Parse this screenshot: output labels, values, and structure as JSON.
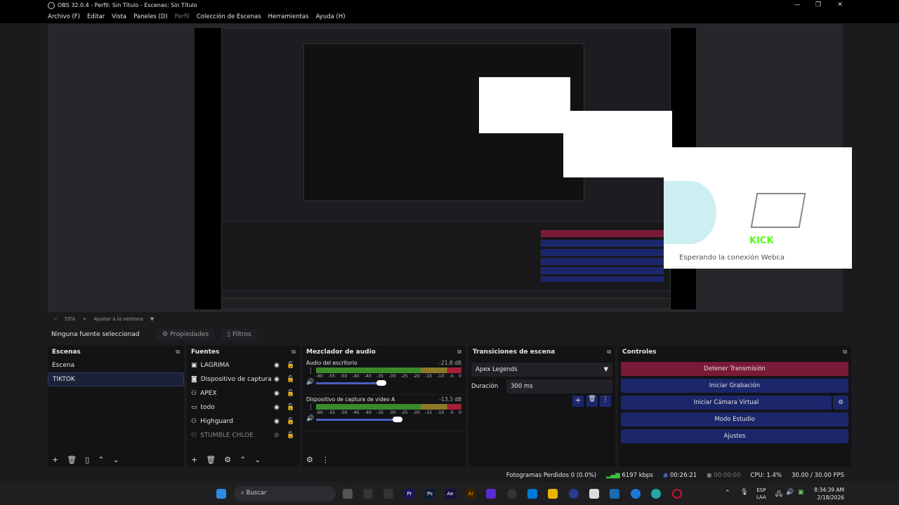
{
  "window": {
    "title": "OBS 32.0.4 - Perfil: Sin Título - Escenas: Sin Título"
  },
  "menu": [
    "Archivo (F)",
    "Editar",
    "Vista",
    "Paneles (D)",
    "Perfil",
    "Colección de Escenas",
    "Herramientas",
    "Ayuda (H)"
  ],
  "preview": {
    "overlay_text": "Esperando la conexión Webcam...",
    "logo": "KICK"
  },
  "zoom": {
    "minus": "−",
    "value": "55%",
    "plus": "+",
    "fit": "Ajustar a la ventana"
  },
  "source_toolbar": {
    "status": "Ninguna fuente seleccionad",
    "properties": "Propiedades",
    "filters": "Filtros"
  },
  "scenes": {
    "title": "Escenas",
    "items": [
      "Escena",
      "TIKTOK"
    ],
    "selected": "TIKTOK"
  },
  "sources": {
    "title": "Fuentes",
    "items": [
      {
        "name": "LAGRIMA",
        "icon": "image-icon",
        "visible": true
      },
      {
        "name": "Dispositivo de captura de",
        "icon": "camera-icon",
        "visible": true
      },
      {
        "name": "APEX",
        "icon": "gamepad-icon",
        "visible": true
      },
      {
        "name": "todo",
        "icon": "monitor-icon",
        "visible": true
      },
      {
        "name": "Highguard",
        "icon": "gamepad-icon",
        "visible": true
      },
      {
        "name": "STUMBLE CHLOE",
        "icon": "gamepad-icon",
        "visible": false
      }
    ]
  },
  "mixer": {
    "title": "Mezclador de audio",
    "ticks": [
      "-60",
      "-55",
      "-50",
      "-45",
      "-40",
      "-35",
      "-30",
      "-25",
      "-20",
      "-15",
      "-10",
      "-5",
      "0"
    ],
    "channels": [
      {
        "name": "Audio del escritorio",
        "db": "-21.8 dB",
        "volume": 0.6
      },
      {
        "name": "Dispositivo de captura de video A",
        "db": "-13.3 dB",
        "volume": 0.75
      }
    ]
  },
  "transitions": {
    "title": "Transiciones de escena",
    "selected": "Apex Legends",
    "duration_label": "Duración",
    "duration": "300 ms"
  },
  "controls": {
    "title": "Controles",
    "buttons": [
      "Detener Transmisión",
      "Iniciar Grabación",
      "Iniciar Cámara Virtual",
      "Modo Estudio",
      "Ajustes"
    ],
    "stop_color": "#7a1a37",
    "btn_color": "#1c276b"
  },
  "status": {
    "dropped": "Fotogramas Perdidos 0 (0.0%)",
    "bitrate": "6197 kbps",
    "stream_time": "00:26:21",
    "rec_time": "00:00:00",
    "cpu": "CPU: 1.4%",
    "fps": "30.00 / 30.00 FPS"
  },
  "taskbar": {
    "search": "Buscar",
    "lang1": "ESP",
    "lang2": "LAA",
    "time": "8:34:39 AM",
    "date": "2/18/2026"
  }
}
